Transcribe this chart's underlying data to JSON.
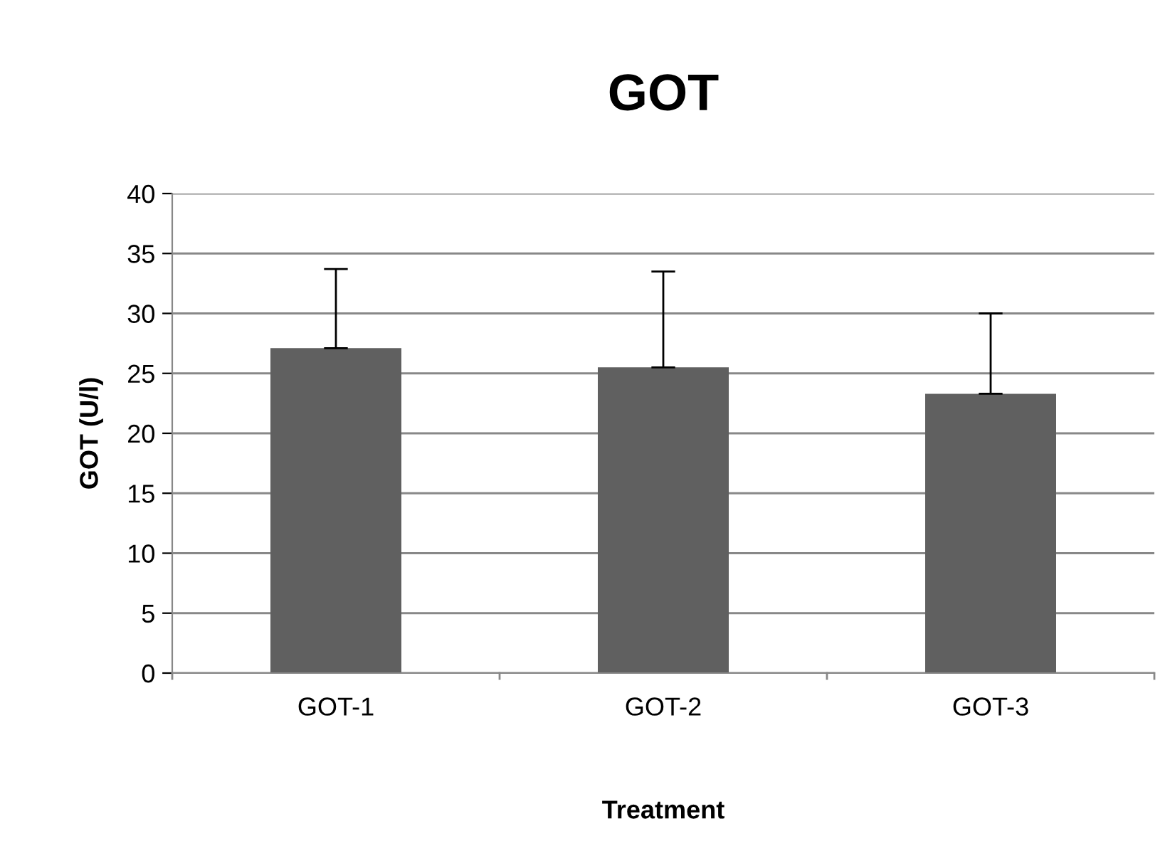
{
  "chart_data": {
    "type": "bar",
    "title": "GOT",
    "xlabel": "Treatment",
    "ylabel": "GOT (U/l)",
    "categories": [
      "GOT-1",
      "GOT-2",
      "GOT-3"
    ],
    "values": [
      27.1,
      25.5,
      23.3
    ],
    "color": "#606060",
    "errors": [
      [
        27.1,
        33.7
      ],
      [
        25.5,
        33.5
      ],
      [
        23.3,
        30.0
      ]
    ],
    "ylim": [
      0,
      40
    ],
    "yticks": [
      0,
      5,
      10,
      15,
      20,
      25,
      30,
      35,
      40
    ],
    "grid": "y",
    "legend": false
  }
}
